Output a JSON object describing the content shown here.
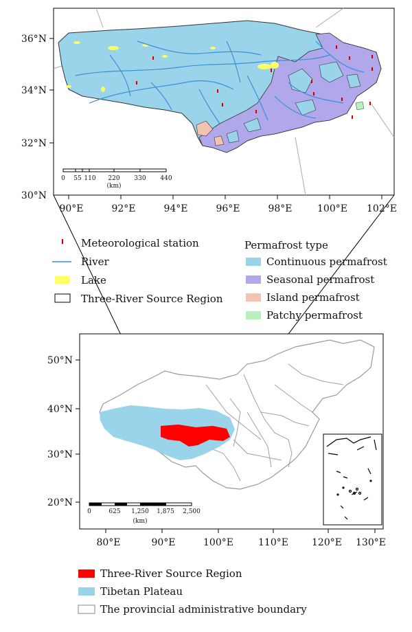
{
  "top_map": {
    "lat_labels": [
      "36°N",
      "34°N",
      "32°N",
      "30°N"
    ],
    "lon_labels": [
      "90°E",
      "92°E",
      "94°E",
      "96°E",
      "98°E",
      "100°E",
      "102°E"
    ],
    "scale_ticks": [
      "0",
      "55",
      "110",
      "220",
      "330",
      "440"
    ],
    "scale_unit": "(km)"
  },
  "legend_left": {
    "items": [
      {
        "label": "Meteorological station",
        "symbol": "station-icon"
      },
      {
        "label": "River",
        "symbol": "river-line",
        "color": "#3a8fd8"
      },
      {
        "label": "Lake",
        "symbol": "lake-swatch",
        "color": "#ffff66"
      },
      {
        "label": "Three-River Source Region",
        "symbol": "region-outline"
      }
    ]
  },
  "legend_right": {
    "title": "Permafrost type",
    "items": [
      {
        "label": "Continuous permafrost",
        "color": "#9ad4ea"
      },
      {
        "label": "Seasonal permafrost",
        "color": "#b0a8ea"
      },
      {
        "label": "Island permafrost",
        "color": "#f3c3b1"
      },
      {
        "label": "Patchy permafrost",
        "color": "#b8f0c0"
      }
    ]
  },
  "bottom_map": {
    "lat_labels": [
      "50°N",
      "40°N",
      "30°N",
      "20°N"
    ],
    "lon_labels": [
      "80°E",
      "90°E",
      "100°E",
      "110°E",
      "120°E",
      "130°E"
    ],
    "scale_ticks": [
      "0",
      "625",
      "1,250",
      "1,875",
      "2,500"
    ],
    "scale_unit": "(km)"
  },
  "legend_bottom": {
    "items": [
      {
        "label": "Three-River Source Region",
        "color": "#ff0000"
      },
      {
        "label": "Tibetan Plateau",
        "color": "#9ad4ea"
      },
      {
        "label": "The provincial administrative boundary",
        "color": "#ffffff"
      }
    ]
  }
}
